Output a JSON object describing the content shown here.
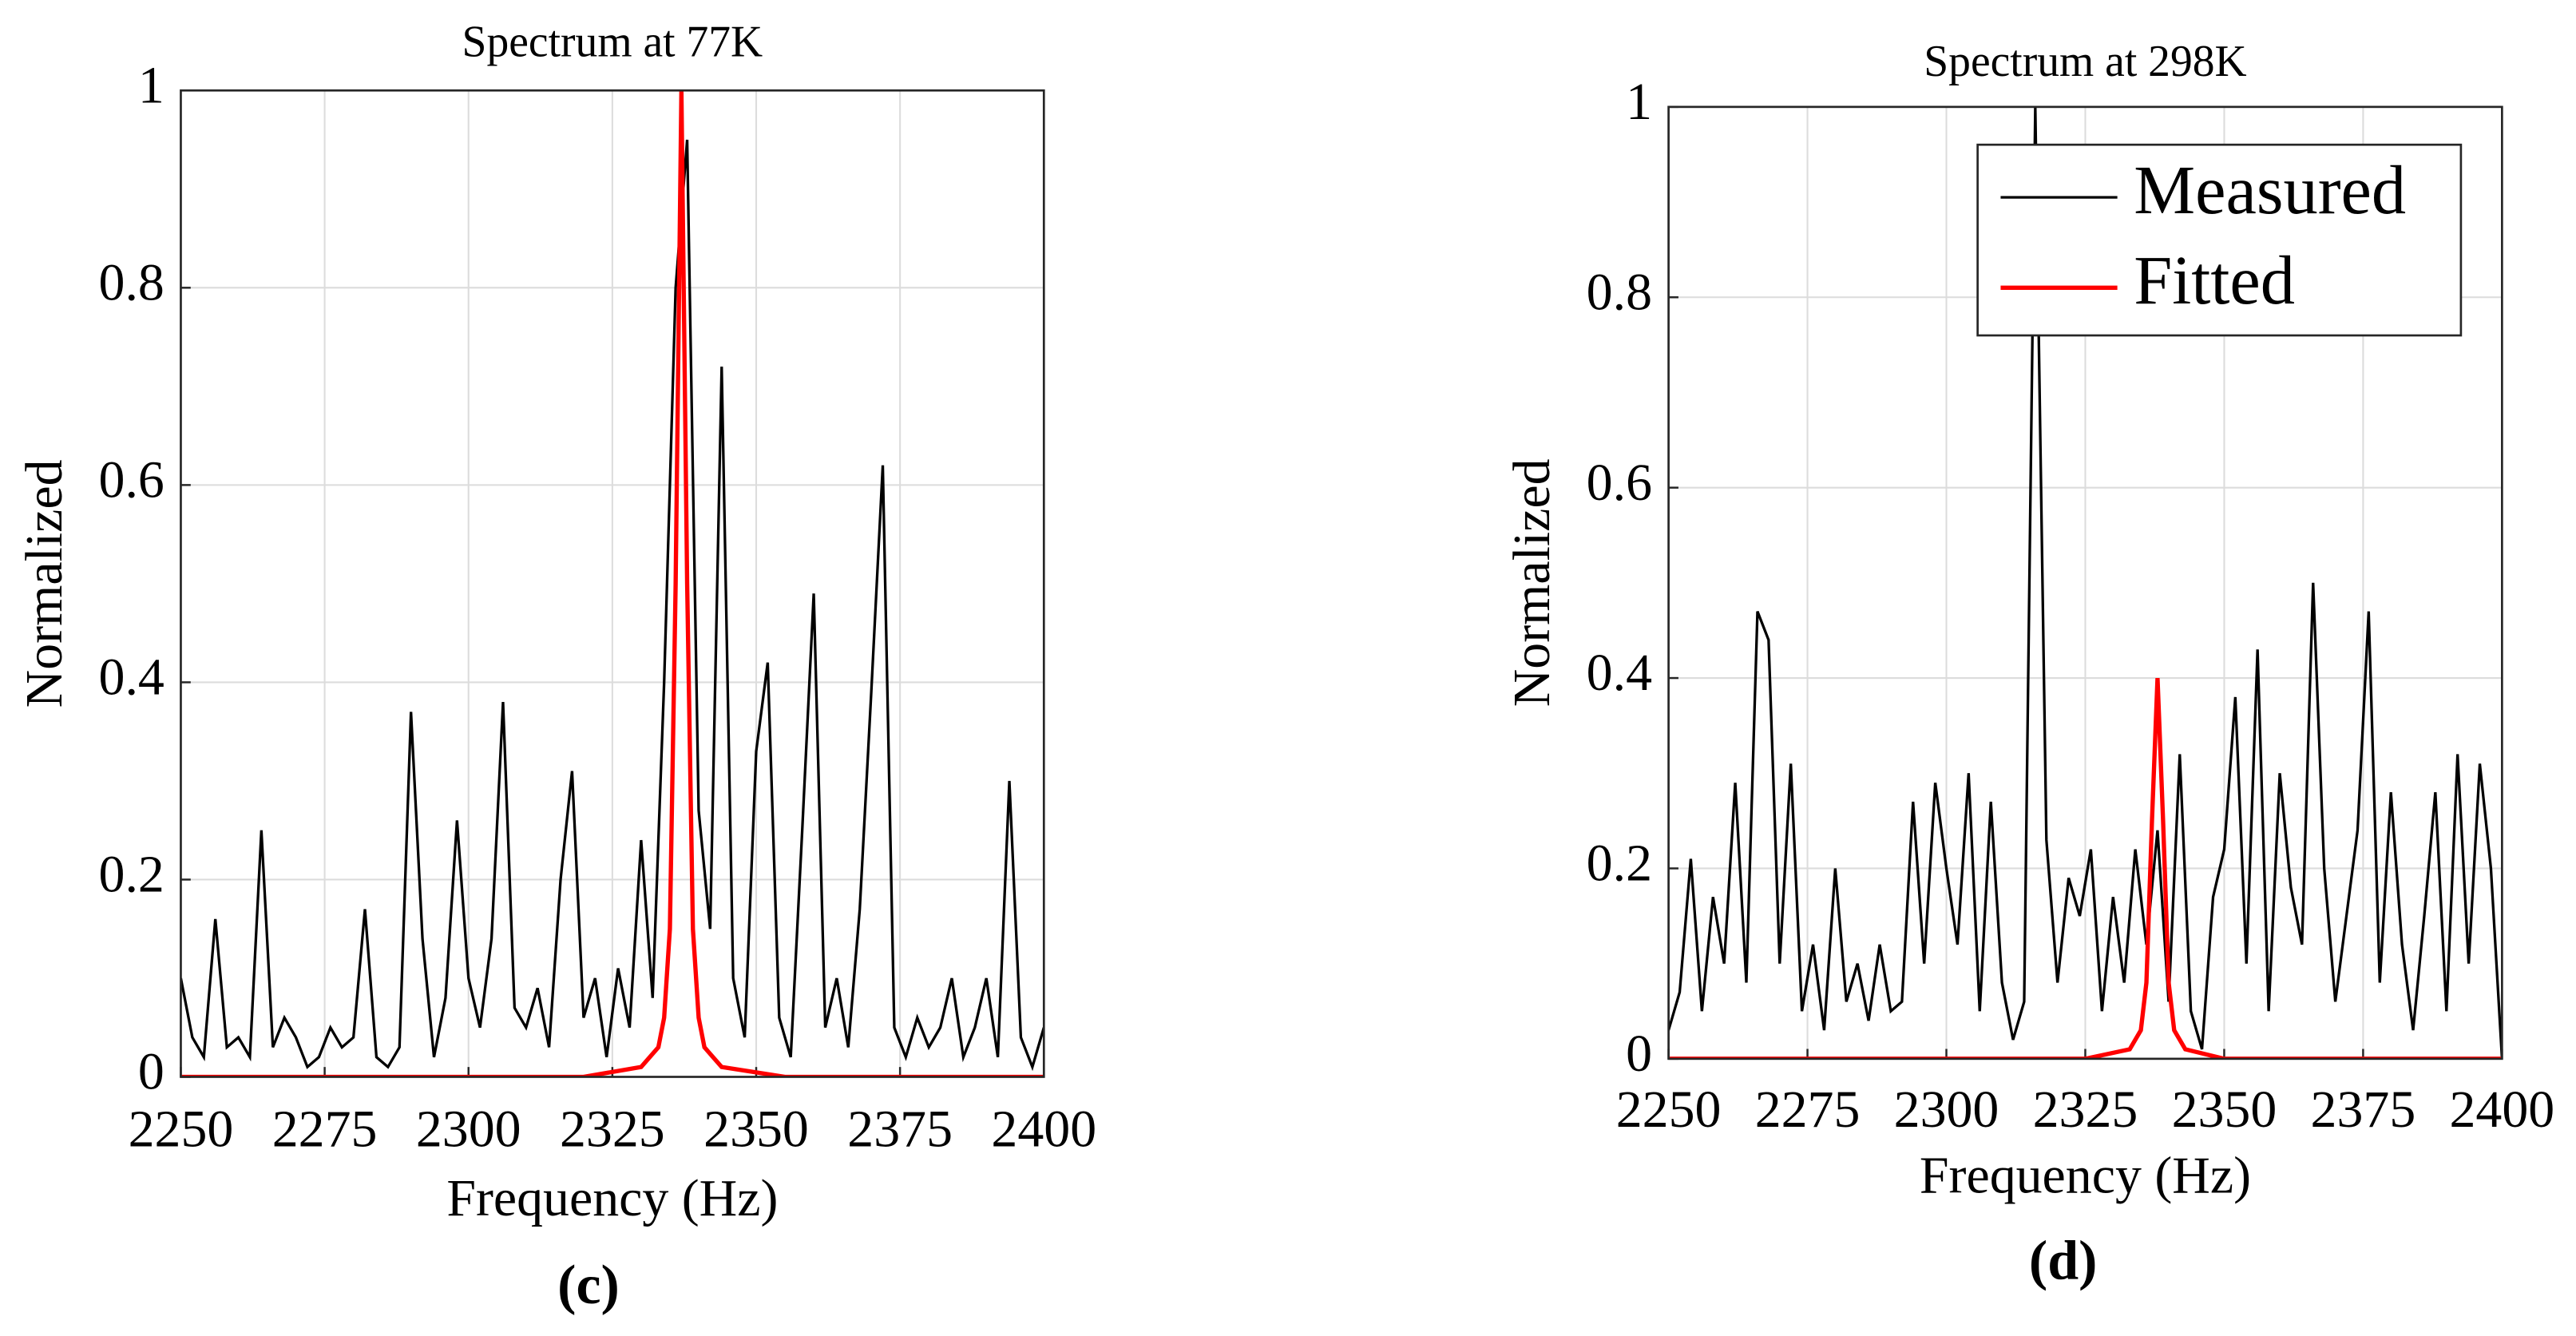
{
  "chart_data": [
    {
      "type": "line",
      "title": "Spectrum at 77K",
      "xlabel": "Frequency (Hz)",
      "ylabel": "Normalized",
      "caption": "(c)",
      "xlim": [
        2250,
        2400
      ],
      "xticks": [
        2250,
        2275,
        2300,
        2325,
        2350,
        2375,
        2400
      ],
      "ylim": [
        0,
        1
      ],
      "yticks": [
        0,
        0.2,
        0.4,
        0.6,
        0.8,
        1
      ],
      "grid": true,
      "series": [
        {
          "name": "Measured",
          "color": "#000000",
          "x": [
            2250,
            2252,
            2254,
            2256,
            2258,
            2260,
            2262,
            2264,
            2266,
            2268,
            2270,
            2272,
            2274,
            2276,
            2278,
            2280,
            2282,
            2284,
            2286,
            2288,
            2290,
            2292,
            2294,
            2296,
            2298,
            2300,
            2302,
            2304,
            2306,
            2308,
            2310,
            2312,
            2314,
            2316,
            2318,
            2320,
            2322,
            2324,
            2326,
            2328,
            2330,
            2332,
            2334,
            2336,
            2338,
            2340,
            2342,
            2344,
            2346,
            2348,
            2350,
            2352,
            2354,
            2356,
            2358,
            2360,
            2362,
            2364,
            2366,
            2368,
            2370,
            2372,
            2374,
            2376,
            2378,
            2380,
            2382,
            2384,
            2386,
            2388,
            2390,
            2392,
            2394,
            2396,
            2398,
            2400
          ],
          "values": [
            0.1,
            0.04,
            0.02,
            0.16,
            0.03,
            0.04,
            0.02,
            0.25,
            0.03,
            0.06,
            0.04,
            0.01,
            0.02,
            0.05,
            0.03,
            0.04,
            0.17,
            0.02,
            0.01,
            0.03,
            0.37,
            0.14,
            0.02,
            0.08,
            0.26,
            0.1,
            0.05,
            0.14,
            0.38,
            0.07,
            0.05,
            0.09,
            0.03,
            0.2,
            0.31,
            0.06,
            0.1,
            0.02,
            0.11,
            0.05,
            0.24,
            0.08,
            0.4,
            0.8,
            0.95,
            0.27,
            0.15,
            0.72,
            0.1,
            0.04,
            0.33,
            0.42,
            0.06,
            0.02,
            0.25,
            0.49,
            0.05,
            0.1,
            0.03,
            0.17,
            0.39,
            0.62,
            0.05,
            0.02,
            0.06,
            0.03,
            0.05,
            0.1,
            0.02,
            0.05,
            0.1,
            0.02,
            0.3,
            0.04,
            0.01,
            0.05
          ]
        },
        {
          "name": "Fitted",
          "color": "#ff0000",
          "x": [
            2250,
            2320,
            2330,
            2333,
            2334,
            2335,
            2336,
            2337,
            2338,
            2339,
            2340,
            2341,
            2344,
            2355,
            2400
          ],
          "values": [
            0,
            0,
            0.01,
            0.03,
            0.06,
            0.15,
            0.5,
            1,
            0.5,
            0.15,
            0.06,
            0.03,
            0.01,
            0,
            0
          ]
        }
      ]
    },
    {
      "type": "line",
      "title": "Spectrum at 298K",
      "xlabel": "Frequency (Hz)",
      "ylabel": "Normalized",
      "caption": "(d)",
      "xlim": [
        2250,
        2400
      ],
      "xticks": [
        2250,
        2275,
        2300,
        2325,
        2350,
        2375,
        2400
      ],
      "ylim": [
        0,
        1
      ],
      "yticks": [
        0,
        0.2,
        0.4,
        0.6,
        0.8,
        1
      ],
      "grid": true,
      "legend": "northeast",
      "series": [
        {
          "name": "Measured",
          "color": "#000000",
          "x": [
            2250,
            2252,
            2254,
            2256,
            2258,
            2260,
            2262,
            2264,
            2266,
            2268,
            2270,
            2272,
            2274,
            2276,
            2278,
            2280,
            2282,
            2284,
            2286,
            2288,
            2290,
            2292,
            2294,
            2296,
            2298,
            2300,
            2302,
            2304,
            2306,
            2308,
            2310,
            2312,
            2314,
            2316,
            2318,
            2320,
            2322,
            2324,
            2326,
            2328,
            2330,
            2332,
            2334,
            2336,
            2338,
            2340,
            2342,
            2344,
            2346,
            2348,
            2350,
            2352,
            2354,
            2356,
            2358,
            2360,
            2362,
            2364,
            2366,
            2368,
            2370,
            2372,
            2374,
            2376,
            2378,
            2380,
            2382,
            2384,
            2386,
            2388,
            2390,
            2392,
            2394,
            2396,
            2398,
            2400
          ],
          "values": [
            0.03,
            0.07,
            0.21,
            0.05,
            0.17,
            0.1,
            0.29,
            0.08,
            0.47,
            0.44,
            0.1,
            0.31,
            0.05,
            0.12,
            0.03,
            0.2,
            0.06,
            0.1,
            0.04,
            0.12,
            0.05,
            0.06,
            0.27,
            0.1,
            0.29,
            0.2,
            0.12,
            0.3,
            0.05,
            0.27,
            0.08,
            0.02,
            0.06,
            1.0,
            0.23,
            0.08,
            0.19,
            0.15,
            0.22,
            0.05,
            0.17,
            0.08,
            0.22,
            0.12,
            0.24,
            0.06,
            0.32,
            0.05,
            0.01,
            0.17,
            0.22,
            0.38,
            0.1,
            0.43,
            0.05,
            0.3,
            0.18,
            0.12,
            0.5,
            0.2,
            0.06,
            0.15,
            0.24,
            0.47,
            0.08,
            0.28,
            0.12,
            0.03,
            0.15,
            0.28,
            0.05,
            0.32,
            0.1,
            0.31,
            0.2,
            0
          ]
        },
        {
          "name": "Fitted",
          "color": "#ff0000",
          "x": [
            2250,
            2325,
            2333,
            2335,
            2336,
            2337,
            2338,
            2339,
            2340,
            2341,
            2343,
            2350,
            2400
          ],
          "values": [
            0,
            0,
            0.01,
            0.03,
            0.08,
            0.25,
            0.4,
            0.25,
            0.08,
            0.03,
            0.01,
            0,
            0
          ]
        }
      ]
    }
  ]
}
